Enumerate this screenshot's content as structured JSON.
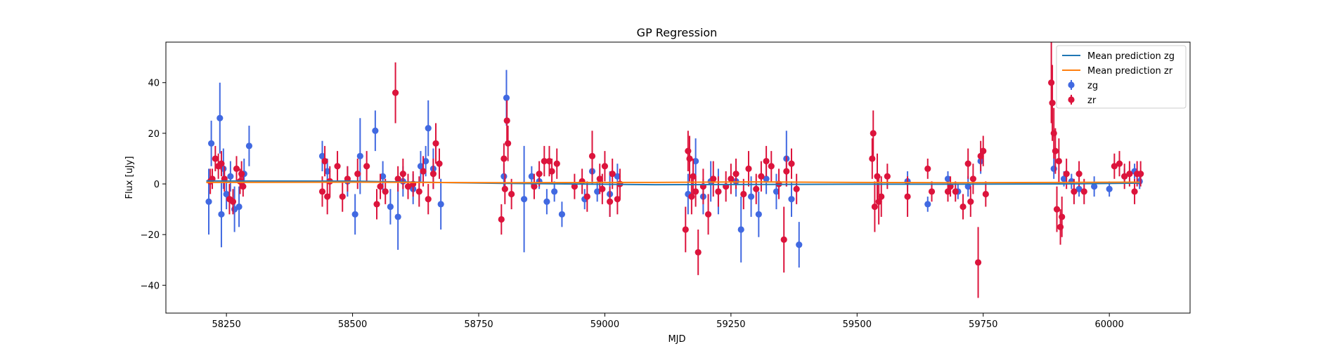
{
  "chart_data": {
    "type": "scatter",
    "title": "GP Regression",
    "xlabel": "MJD",
    "ylabel": "Flux [uJy]",
    "xlim": [
      58130,
      60160
    ],
    "ylim": [
      -51,
      56
    ],
    "xticks": [
      58250,
      58500,
      58750,
      59000,
      59250,
      59500,
      59750,
      60000
    ],
    "yticks": [
      -40,
      -20,
      0,
      20,
      40
    ],
    "legend_position": "top-right",
    "lines": [
      {
        "name": "Mean prediction zg",
        "color": "#1f77b4",
        "x": [
          58210,
          58500,
          58800,
          59100,
          59300,
          59500,
          59700,
          59900,
          60060
        ],
        "y": [
          1.2,
          1.1,
          0.2,
          -0.3,
          -0.2,
          -0.1,
          -0.1,
          0.0,
          0.3
        ]
      },
      {
        "name": "Mean prediction zr",
        "color": "#ff7f0e",
        "x": [
          58210,
          58500,
          58800,
          59100,
          59300,
          59500,
          59700,
          59900,
          60060
        ],
        "y": [
          0.6,
          0.7,
          0.5,
          0.6,
          0.8,
          0.6,
          0.5,
          0.6,
          0.7
        ]
      }
    ],
    "series": [
      {
        "name": "zg",
        "color": "#4169e1",
        "points": [
          [
            58215,
            -7,
            13
          ],
          [
            58220,
            16,
            9
          ],
          [
            58237,
            26,
            14
          ],
          [
            58240,
            -12,
            13
          ],
          [
            58244,
            6,
            8
          ],
          [
            58250,
            -4,
            6
          ],
          [
            58258,
            3,
            6
          ],
          [
            58266,
            -10,
            9
          ],
          [
            58275,
            -9,
            8
          ],
          [
            58285,
            4,
            6
          ],
          [
            58295,
            15,
            8
          ],
          [
            58440,
            11,
            6
          ],
          [
            58450,
            5,
            5
          ],
          [
            58490,
            1,
            6
          ],
          [
            58505,
            -12,
            8
          ],
          [
            58515,
            11,
            15
          ],
          [
            58545,
            21,
            8
          ],
          [
            58560,
            3,
            6
          ],
          [
            58575,
            -9,
            7
          ],
          [
            58590,
            -13,
            13
          ],
          [
            58600,
            1,
            6
          ],
          [
            58620,
            -2,
            6
          ],
          [
            58635,
            7,
            6
          ],
          [
            58645,
            9,
            6
          ],
          [
            58650,
            22,
            11
          ],
          [
            58660,
            6,
            8
          ],
          [
            58675,
            -8,
            10
          ],
          [
            58800,
            3,
            5
          ],
          [
            58805,
            34,
            11
          ],
          [
            58840,
            -6,
            21
          ],
          [
            58855,
            3,
            4
          ],
          [
            58870,
            1,
            3
          ],
          [
            58885,
            -7,
            5
          ],
          [
            58900,
            -3,
            4
          ],
          [
            58915,
            -12,
            5
          ],
          [
            58960,
            -6,
            4
          ],
          [
            58975,
            5,
            5
          ],
          [
            58985,
            -3,
            4
          ],
          [
            59010,
            -4,
            9
          ],
          [
            59025,
            3,
            5
          ],
          [
            59165,
            -4,
            8
          ],
          [
            59180,
            9,
            9
          ],
          [
            59195,
            -5,
            7
          ],
          [
            59210,
            1,
            8
          ],
          [
            59225,
            -3,
            9
          ],
          [
            59260,
            1,
            6
          ],
          [
            59270,
            -18,
            13
          ],
          [
            59290,
            -5,
            8
          ],
          [
            59305,
            -12,
            9
          ],
          [
            59320,
            2,
            6
          ],
          [
            59340,
            -3,
            7
          ],
          [
            59360,
            10,
            11
          ],
          [
            59370,
            -6,
            7
          ],
          [
            59385,
            -24,
            9
          ],
          [
            59600,
            1,
            4
          ],
          [
            59640,
            -8,
            3
          ],
          [
            59680,
            2,
            3
          ],
          [
            59700,
            -3,
            3
          ],
          [
            59720,
            -1,
            4
          ],
          [
            59745,
            9,
            5
          ],
          [
            59890,
            6,
            4
          ],
          [
            59910,
            2,
            3
          ],
          [
            59925,
            1,
            3
          ],
          [
            59940,
            -2,
            3
          ],
          [
            59970,
            -1,
            4
          ],
          [
            60000,
            -2,
            3
          ],
          [
            60030,
            3,
            3
          ],
          [
            60050,
            5,
            3
          ],
          [
            60060,
            1,
            3
          ]
        ]
      },
      {
        "name": "zr",
        "color": "#dc143c",
        "points": [
          [
            58218,
            1,
            5
          ],
          [
            58222,
            2,
            4
          ],
          [
            58228,
            10,
            5
          ],
          [
            58234,
            7,
            5
          ],
          [
            58240,
            8,
            5
          ],
          [
            58246,
            2,
            5
          ],
          [
            58256,
            -6,
            6
          ],
          [
            58263,
            -7,
            5
          ],
          [
            58270,
            6,
            5
          ],
          [
            58277,
            1,
            5
          ],
          [
            58280,
            4,
            5
          ],
          [
            58283,
            -1,
            4
          ],
          [
            58440,
            -3,
            6
          ],
          [
            58445,
            9,
            6
          ],
          [
            58450,
            -5,
            7
          ],
          [
            58455,
            1,
            6
          ],
          [
            58470,
            7,
            6
          ],
          [
            58480,
            -5,
            6
          ],
          [
            58490,
            2,
            5
          ],
          [
            58510,
            4,
            6
          ],
          [
            58528,
            7,
            6
          ],
          [
            58548,
            -8,
            6
          ],
          [
            58555,
            -1,
            5
          ],
          [
            58565,
            -3,
            5
          ],
          [
            58585,
            36,
            12
          ],
          [
            58590,
            2,
            5
          ],
          [
            58600,
            4,
            6
          ],
          [
            58610,
            -1,
            5
          ],
          [
            58620,
            0,
            5
          ],
          [
            58632,
            -3,
            6
          ],
          [
            58640,
            5,
            6
          ],
          [
            58650,
            -6,
            6
          ],
          [
            58660,
            4,
            6
          ],
          [
            58665,
            16,
            8
          ],
          [
            58672,
            8,
            6
          ],
          [
            58795,
            -14,
            6
          ],
          [
            58800,
            10,
            6
          ],
          [
            58802,
            -2,
            6
          ],
          [
            58806,
            25,
            8
          ],
          [
            58808,
            16,
            7
          ],
          [
            58815,
            -4,
            6
          ],
          [
            58860,
            -1,
            5
          ],
          [
            58870,
            4,
            5
          ],
          [
            58880,
            9,
            6
          ],
          [
            58890,
            9,
            6
          ],
          [
            58895,
            5,
            5
          ],
          [
            58905,
            8,
            6
          ],
          [
            58940,
            -1,
            5
          ],
          [
            58955,
            1,
            5
          ],
          [
            58965,
            -5,
            6
          ],
          [
            58975,
            11,
            10
          ],
          [
            58990,
            2,
            6
          ],
          [
            58995,
            -2,
            6
          ],
          [
            59000,
            7,
            6
          ],
          [
            59010,
            -7,
            6
          ],
          [
            59015,
            4,
            6
          ],
          [
            59025,
            -6,
            6
          ],
          [
            59030,
            0,
            6
          ],
          [
            59160,
            -18,
            9
          ],
          [
            59165,
            13,
            8
          ],
          [
            59168,
            10,
            9
          ],
          [
            59172,
            -5,
            7
          ],
          [
            59175,
            3,
            7
          ],
          [
            59180,
            -3,
            6
          ],
          [
            59185,
            -27,
            9
          ],
          [
            59195,
            -1,
            7
          ],
          [
            59205,
            -12,
            8
          ],
          [
            59215,
            2,
            7
          ],
          [
            59225,
            -3,
            6
          ],
          [
            59240,
            -1,
            6
          ],
          [
            59250,
            2,
            6
          ],
          [
            59260,
            4,
            6
          ],
          [
            59275,
            -4,
            6
          ],
          [
            59285,
            6,
            7
          ],
          [
            59300,
            -2,
            6
          ],
          [
            59310,
            3,
            6
          ],
          [
            59320,
            9,
            6
          ],
          [
            59330,
            7,
            6
          ],
          [
            59345,
            0,
            6
          ],
          [
            59355,
            -22,
            13
          ],
          [
            59360,
            5,
            6
          ],
          [
            59370,
            8,
            6
          ],
          [
            59380,
            -2,
            6
          ],
          [
            59530,
            10,
            8
          ],
          [
            59532,
            20,
            9
          ],
          [
            59535,
            -9,
            10
          ],
          [
            59540,
            3,
            9
          ],
          [
            59543,
            -7,
            9
          ],
          [
            59548,
            -5,
            8
          ],
          [
            59560,
            3,
            5
          ],
          [
            59600,
            -5,
            8
          ],
          [
            59640,
            6,
            4
          ],
          [
            59648,
            -3,
            4
          ],
          [
            59680,
            -3,
            4
          ],
          [
            59685,
            -1,
            4
          ],
          [
            59695,
            -3,
            4
          ],
          [
            59710,
            -9,
            5
          ],
          [
            59720,
            8,
            6
          ],
          [
            59725,
            -7,
            6
          ],
          [
            59730,
            2,
            6
          ],
          [
            59740,
            -31,
            14
          ],
          [
            59745,
            11,
            6
          ],
          [
            59750,
            13,
            6
          ],
          [
            59755,
            -4,
            5
          ],
          [
            59885,
            40,
            16
          ],
          [
            59887,
            32,
            15
          ],
          [
            59890,
            20,
            10
          ],
          [
            59893,
            13,
            9
          ],
          [
            59896,
            -10,
            9
          ],
          [
            59900,
            9,
            9
          ],
          [
            59903,
            -17,
            7
          ],
          [
            59906,
            -13,
            8
          ],
          [
            59915,
            4,
            6
          ],
          [
            59930,
            -3,
            5
          ],
          [
            59940,
            4,
            5
          ],
          [
            59950,
            -3,
            5
          ],
          [
            60010,
            7,
            5
          ],
          [
            60020,
            8,
            5
          ],
          [
            60030,
            3,
            5
          ],
          [
            60040,
            4,
            5
          ],
          [
            60050,
            -3,
            5
          ],
          [
            60055,
            4,
            5
          ],
          [
            60062,
            4,
            5
          ]
        ]
      }
    ]
  }
}
